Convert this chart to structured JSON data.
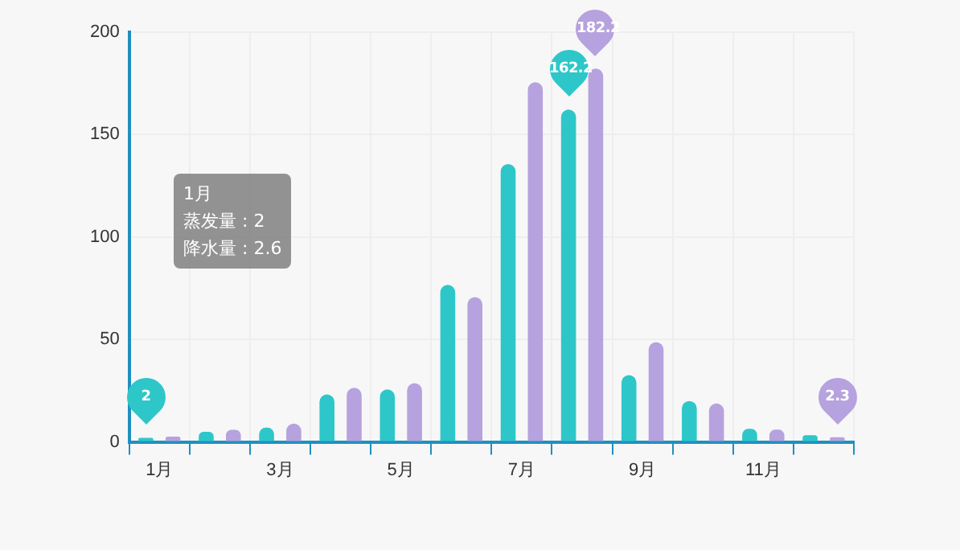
{
  "chart_data": {
    "type": "bar",
    "categories": [
      "1月",
      null,
      "3月",
      null,
      "5月",
      null,
      "7月",
      null,
      "9月",
      null,
      "11月",
      null
    ],
    "series": [
      {
        "color": "#2ec7c9",
        "values": [
          2.0,
          4.9,
          7.0,
          23.2,
          25.6,
          76.7,
          135.6,
          162.2,
          32.6,
          20.0,
          6.4,
          3.3
        ],
        "value_labels": [
          "2",
          null,
          null,
          null,
          null,
          null,
          null,
          "162.2",
          null,
          null,
          null,
          null
        ]
      },
      {
        "color": "#b6a2de",
        "values": [
          2.6,
          5.9,
          9.0,
          26.4,
          28.7,
          70.7,
          175.6,
          182.2,
          48.7,
          18.8,
          6.0,
          2.3
        ],
        "value_labels": [
          null,
          null,
          null,
          null,
          null,
          null,
          null,
          "182.2",
          null,
          null,
          null,
          "2.3"
        ]
      }
    ],
    "ylim": [
      0,
      200
    ],
    "yticks": [
      0,
      50,
      100,
      150,
      200
    ],
    "grid": true,
    "legend": false,
    "annotations": [
      "1月",
      "蒸发量 : 2",
      "降水量 : 2.6"
    ]
  }
}
